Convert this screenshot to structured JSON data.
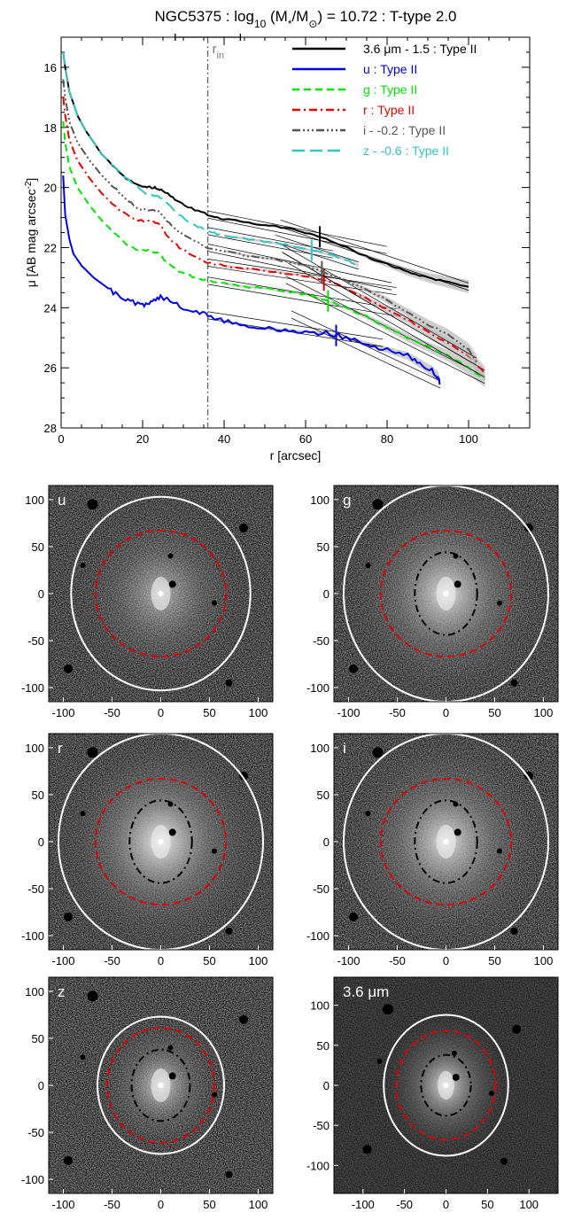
{
  "chart_data": [
    {
      "type": "line",
      "title_parts": [
        "NGC5375 : log",
        "10",
        " (M",
        "*",
        "/M",
        "⊙",
        ") = 10.72 : T-type 2.0"
      ],
      "xlabel": "r [arcsec]",
      "ylabel_parts": [
        "μ [AB mag arcsec",
        "-2",
        "]"
      ],
      "xlim": [
        0,
        115
      ],
      "ylim": [
        28,
        15
      ],
      "xticks": [
        0,
        20,
        40,
        60,
        80,
        100
      ],
      "yticks": [
        16,
        18,
        20,
        22,
        24,
        26,
        28
      ],
      "r_in": {
        "label": "r",
        "sub": "in",
        "value": 36,
        "err": [
          28,
          44
        ]
      },
      "legend_position": "top-right",
      "colors": {
        "3.6": "#000000",
        "u": "#0000e6",
        "g": "#00e600",
        "r": "#e60000",
        "i": "#555555",
        "z": "#33c4c4"
      },
      "series": [
        {
          "key": "3.6",
          "name": "3.6 μm - 1.5 : Type II",
          "color": "#000000",
          "dash": "solid",
          "x": [
            0.5,
            1,
            2,
            4,
            6,
            8,
            10,
            13,
            16,
            19,
            21,
            23,
            25,
            28,
            32,
            36,
            40,
            45,
            50,
            55,
            60,
            65,
            70,
            75,
            80,
            85,
            90,
            95,
            100
          ],
          "y": [
            15.5,
            16.0,
            16.8,
            17.6,
            18.1,
            18.5,
            18.9,
            19.3,
            19.7,
            19.95,
            20.0,
            20.0,
            20.1,
            20.4,
            20.7,
            20.9,
            21.05,
            21.15,
            21.25,
            21.35,
            21.5,
            21.7,
            22.0,
            22.3,
            22.55,
            22.8,
            23.0,
            23.15,
            23.3
          ],
          "break": 63.5
        },
        {
          "key": "u",
          "name": "u : Type II",
          "color": "#0000e6",
          "dash": "solid",
          "x": [
            0.5,
            1,
            2,
            3,
            5,
            8,
            11,
            14,
            17,
            20,
            22,
            24,
            26,
            30,
            34,
            36,
            40,
            45,
            50,
            55,
            60,
            65,
            70,
            75,
            80,
            85,
            88,
            91,
            92.5,
            93
          ],
          "y": [
            19.6,
            20.9,
            21.7,
            22.2,
            22.6,
            23.0,
            23.3,
            23.6,
            23.8,
            23.9,
            23.8,
            23.65,
            23.7,
            24.0,
            24.2,
            24.25,
            24.45,
            24.6,
            24.7,
            24.75,
            24.8,
            24.85,
            25.0,
            25.2,
            25.4,
            25.6,
            25.85,
            26.1,
            26.3,
            26.55
          ],
          "break": 67.5
        },
        {
          "key": "g",
          "name": "g : Type II",
          "color": "#00e600",
          "dash": "dash",
          "x": [
            0.5,
            1,
            2,
            4,
            7,
            10,
            13,
            16,
            19,
            22,
            24,
            26,
            29,
            33,
            36,
            40,
            45,
            50,
            55,
            60,
            65,
            70,
            75,
            80,
            85,
            90,
            95,
            100,
            104
          ],
          "y": [
            17.8,
            18.5,
            19.3,
            20.0,
            20.6,
            21.1,
            21.5,
            21.9,
            22.1,
            22.1,
            22.2,
            22.5,
            22.8,
            23.0,
            23.1,
            23.2,
            23.3,
            23.35,
            23.45,
            23.55,
            23.75,
            24.0,
            24.3,
            24.65,
            25.0,
            25.3,
            25.6,
            26.0,
            26.4
          ],
          "break": 65.5
        },
        {
          "key": "r",
          "name": "r : Type II",
          "color": "#e60000",
          "dash": "dashdot",
          "x": [
            0.5,
            1,
            2,
            4,
            7,
            10,
            13,
            16,
            19,
            22,
            24,
            26,
            29,
            33,
            36,
            40,
            45,
            50,
            55,
            60,
            65,
            70,
            75,
            80,
            85,
            90,
            95,
            100,
            104
          ],
          "y": [
            17.0,
            17.6,
            18.4,
            19.1,
            19.7,
            20.2,
            20.6,
            20.9,
            21.1,
            21.1,
            21.2,
            21.6,
            22.0,
            22.3,
            22.5,
            22.6,
            22.7,
            22.75,
            22.85,
            22.95,
            23.1,
            23.35,
            23.7,
            24.05,
            24.4,
            24.8,
            25.2,
            25.6,
            26.2
          ],
          "break": 64.5
        },
        {
          "key": "i",
          "name": "i - -0.2 : Type II",
          "color": "#555555",
          "dash": "dashdotdotdot",
          "x": [
            0.5,
            1,
            2,
            4,
            7,
            10,
            13,
            16,
            19,
            22,
            24,
            26,
            29,
            33,
            36,
            40,
            45,
            50,
            55,
            60,
            65,
            70,
            75,
            80,
            85,
            90,
            95,
            100,
            102
          ],
          "y": [
            16.4,
            17.0,
            17.8,
            18.5,
            19.1,
            19.6,
            20.0,
            20.4,
            20.7,
            20.75,
            20.8,
            21.1,
            21.5,
            21.8,
            22.0,
            22.1,
            22.25,
            22.35,
            22.45,
            22.6,
            22.85,
            23.1,
            23.4,
            23.75,
            24.15,
            24.55,
            24.9,
            25.4,
            25.8
          ],
          "break": 64.0
        },
        {
          "key": "z",
          "name": "z - -0.6 : Type II",
          "color": "#33c4c4",
          "dash": "longdash",
          "x": [
            0.5,
            1,
            2,
            4,
            6,
            8,
            10,
            13,
            16,
            19,
            21,
            23,
            25,
            28,
            32,
            36,
            40,
            45,
            50,
            55,
            60,
            65,
            70,
            73
          ],
          "y": [
            15.5,
            16.0,
            16.8,
            17.6,
            18.1,
            18.5,
            18.9,
            19.3,
            19.7,
            20.0,
            20.25,
            20.25,
            20.4,
            20.8,
            21.2,
            21.45,
            21.6,
            21.7,
            21.8,
            21.9,
            22.05,
            22.2,
            22.4,
            22.6
          ],
          "break": 61.5
        }
      ]
    },
    {
      "type": "image-panels",
      "panels": [
        {
          "key": "u",
          "label": "u",
          "xlim": [
            -115,
            115
          ],
          "ylim": [
            -115,
            115
          ],
          "xticks": [
            -100,
            -50,
            0,
            50,
            100
          ],
          "yticks": [
            -100,
            -50,
            0,
            50,
            100
          ],
          "outer": [
            92,
            103
          ],
          "red": [
            67,
            67
          ],
          "inner": null,
          "bright": 0.7
        },
        {
          "key": "g",
          "label": "g",
          "xlim": [
            -115,
            115
          ],
          "ylim": [
            -115,
            115
          ],
          "xticks": [
            -100,
            -50,
            0,
            50,
            100
          ],
          "yticks": [
            -100,
            -50,
            0,
            50,
            100
          ],
          "outer": [
            105,
            115
          ],
          "red": [
            67,
            67
          ],
          "inner": [
            32,
            44
          ],
          "bright": 1.0
        },
        {
          "key": "r",
          "label": "r",
          "xlim": [
            -115,
            115
          ],
          "ylim": [
            -115,
            115
          ],
          "xticks": [
            -100,
            -50,
            0,
            50,
            100
          ],
          "yticks": [
            -100,
            -50,
            0,
            50,
            100
          ],
          "outer": [
            105,
            115
          ],
          "red": [
            67,
            67
          ],
          "inner": [
            32,
            44
          ],
          "bright": 1.1
        },
        {
          "key": "i",
          "label": "i",
          "xlim": [
            -115,
            115
          ],
          "ylim": [
            -115,
            115
          ],
          "xticks": [
            -100,
            -50,
            0,
            50,
            100
          ],
          "yticks": [
            -100,
            -50,
            0,
            50,
            100
          ],
          "outer": [
            105,
            115
          ],
          "red": [
            67,
            67
          ],
          "inner": [
            32,
            44
          ],
          "bright": 1.0
        },
        {
          "key": "z",
          "label": "z",
          "xlim": [
            -115,
            115
          ],
          "ylim": [
            -115,
            115
          ],
          "xticks": [
            -100,
            -50,
            0,
            50,
            100
          ],
          "yticks": [
            -100,
            -50,
            0,
            50,
            100
          ],
          "outer": [
            65,
            73
          ],
          "red": [
            55,
            61
          ],
          "inner": [
            30,
            38
          ],
          "bright": 0.9
        },
        {
          "key": "3.6",
          "label": "3.6 μm",
          "xlim": [
            -135,
            135
          ],
          "ylim": [
            -135,
            135
          ],
          "xticks": [
            -100,
            -50,
            0,
            50,
            100
          ],
          "yticks": [
            -100,
            -50,
            0,
            50,
            100
          ],
          "outer": [
            75,
            88
          ],
          "red": [
            60,
            68
          ],
          "inner": [
            30,
            38
          ],
          "bright": 1.0
        }
      ]
    }
  ]
}
